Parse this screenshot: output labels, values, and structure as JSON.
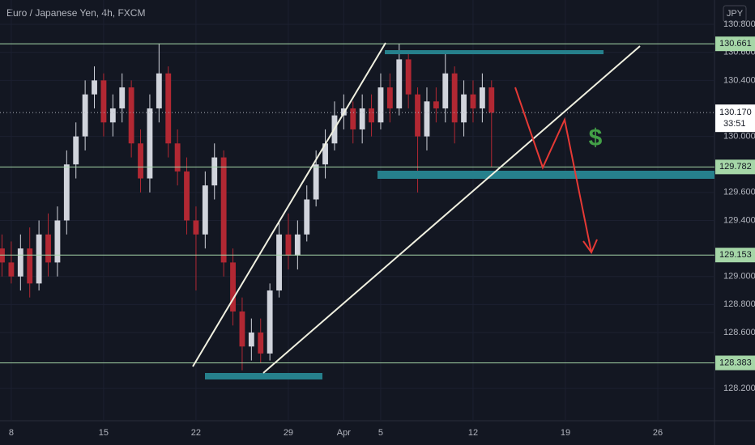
{
  "chart_data": {
    "type": "candlestick",
    "title": "Euro / Japanese Yen, 4h, FXCM",
    "currency": "JPY",
    "x": [
      -0.5,
      0,
      0.5,
      1,
      1.5,
      2,
      2.5,
      3,
      3.5,
      4,
      4.5,
      5,
      5.5,
      6,
      6.5,
      7,
      7.5,
      8,
      8.5,
      9,
      9.5,
      10,
      10.5,
      11,
      11.5,
      12,
      12.5,
      13,
      13.5,
      14,
      14.5,
      15,
      15.5,
      16,
      16.5,
      17,
      17.5,
      18,
      18.5,
      19,
      19.5,
      20,
      20.5,
      21,
      21.5,
      22,
      22.5,
      23,
      23.5,
      24,
      24.5,
      25,
      25.5,
      26
    ],
    "open": [
      129.2,
      129.1,
      129.0,
      129.2,
      128.95,
      129.3,
      129.1,
      129.4,
      129.8,
      130.0,
      130.3,
      130.4,
      130.1,
      130.2,
      130.35,
      129.95,
      129.7,
      130.2,
      130.45,
      129.95,
      129.75,
      129.4,
      129.3,
      129.65,
      129.85,
      129.1,
      128.75,
      128.5,
      128.6,
      128.45,
      128.9,
      129.3,
      129.15,
      129.3,
      129.55,
      129.8,
      129.95,
      130.15,
      130.2,
      130.05,
      130.2,
      130.1,
      130.35,
      130.2,
      130.55,
      130.3,
      130.0,
      130.25,
      130.2,
      130.45,
      130.1,
      130.3,
      130.2,
      130.35
    ],
    "high": [
      129.3,
      129.25,
      129.3,
      129.35,
      129.4,
      129.45,
      129.5,
      129.9,
      130.1,
      130.4,
      130.5,
      130.45,
      130.3,
      130.45,
      130.4,
      130.05,
      130.3,
      130.66,
      130.5,
      130.05,
      129.85,
      129.5,
      129.75,
      129.95,
      129.9,
      129.2,
      128.85,
      128.7,
      128.7,
      128.95,
      129.4,
      129.45,
      129.4,
      129.65,
      129.9,
      130.05,
      130.25,
      130.3,
      130.25,
      130.3,
      130.3,
      130.45,
      130.45,
      130.66,
      130.6,
      130.35,
      130.35,
      130.35,
      130.6,
      130.5,
      130.4,
      130.4,
      130.45,
      130.4
    ],
    "low": [
      129.0,
      128.95,
      128.9,
      128.85,
      128.9,
      129.0,
      129.0,
      129.3,
      129.7,
      129.9,
      130.2,
      130.0,
      130.0,
      130.1,
      129.85,
      129.6,
      129.6,
      130.1,
      129.85,
      129.65,
      129.3,
      128.9,
      129.2,
      129.55,
      129.0,
      128.65,
      128.33,
      128.4,
      128.38,
      128.4,
      128.85,
      129.05,
      129.05,
      129.25,
      129.5,
      129.7,
      129.9,
      130.05,
      129.95,
      129.95,
      130.0,
      130.05,
      130.1,
      130.15,
      130.2,
      129.6,
      129.9,
      130.1,
      130.1,
      129.95,
      130.0,
      130.1,
      130.1,
      129.78
    ],
    "close": [
      129.1,
      129.0,
      129.2,
      128.95,
      129.3,
      129.1,
      129.4,
      129.8,
      130.0,
      130.3,
      130.4,
      130.1,
      130.2,
      130.35,
      129.95,
      129.7,
      130.2,
      130.45,
      129.95,
      129.75,
      129.4,
      129.3,
      129.65,
      129.85,
      129.1,
      128.75,
      128.5,
      128.6,
      128.45,
      128.9,
      129.3,
      129.15,
      129.3,
      129.55,
      129.8,
      129.95,
      130.15,
      130.2,
      130.05,
      130.2,
      130.1,
      130.35,
      130.2,
      130.55,
      130.3,
      130.0,
      130.25,
      130.2,
      130.45,
      130.1,
      130.3,
      130.2,
      130.35,
      130.17
    ],
    "up_color": "#d1d4dc",
    "down_color": "#b22833",
    "xlim": [
      -0.61,
      38.07
    ],
    "xticks": [
      {
        "value": 0,
        "label": "8"
      },
      {
        "value": 5,
        "label": "15"
      },
      {
        "value": 10,
        "label": "22"
      },
      {
        "value": 15,
        "label": "29"
      },
      {
        "value": 18,
        "label": "Apr"
      },
      {
        "value": 20,
        "label": "5"
      },
      {
        "value": 25,
        "label": "12"
      },
      {
        "value": 30,
        "label": "19"
      },
      {
        "value": 35,
        "label": "26"
      }
    ],
    "ylim": [
      127.97,
      130.974
    ],
    "yticks": [
      {
        "value": 130.8,
        "label": "130.800"
      },
      {
        "value": 130.6,
        "label": "130.600"
      },
      {
        "value": 130.4,
        "label": "130.400"
      },
      {
        "value": 130.0,
        "label": "130.000"
      },
      {
        "value": 129.6,
        "label": "129.600"
      },
      {
        "value": 129.4,
        "label": "129.400"
      },
      {
        "value": 129.0,
        "label": "129.000"
      },
      {
        "value": 128.8,
        "label": "128.800"
      },
      {
        "value": 128.6,
        "label": "128.600"
      },
      {
        "value": 128.2,
        "label": "128.200"
      }
    ],
    "levels": [
      {
        "value": 130.661,
        "label": "130.661"
      },
      {
        "value": 129.782,
        "label": "129.782"
      },
      {
        "value": 129.153,
        "label": "129.153"
      },
      {
        "value": 128.383,
        "label": "128.383"
      }
    ],
    "level_color": "#a5d6a7",
    "last_price": {
      "value": 130.17,
      "label": "130.170"
    },
    "countdown": "33:51",
    "annotation": "$"
  }
}
